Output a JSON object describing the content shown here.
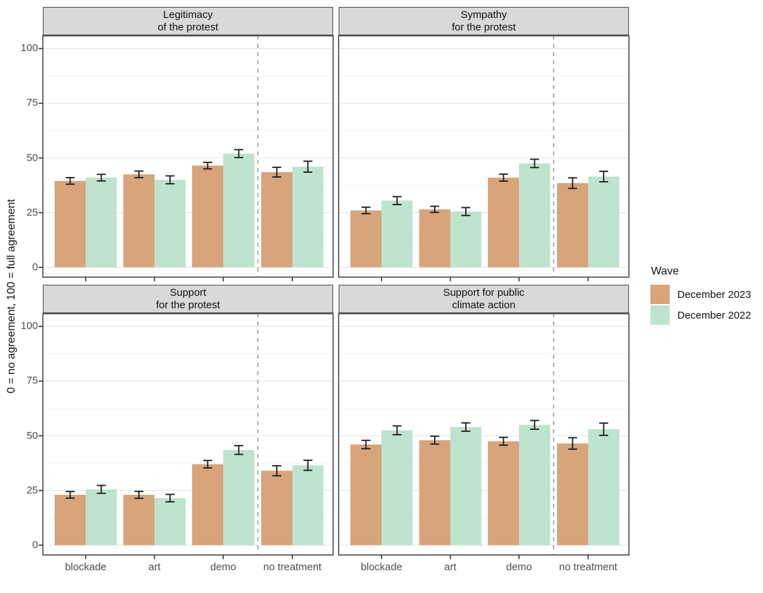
{
  "y_axis_title": "0 = no agreement, 100 = full agreement",
  "legend": {
    "title": "Wave",
    "items": [
      {
        "label": "December 2023",
        "color": "#D8A47C"
      },
      {
        "label": "December 2022",
        "color": "#BEE3CF"
      }
    ]
  },
  "chart_data": {
    "type": "bar",
    "categories": [
      "blockade",
      "art",
      "demo",
      "no treatment"
    ],
    "y_ticks": [
      0,
      25,
      50,
      75,
      100
    ],
    "ylim": [
      0,
      100
    ],
    "ylabel": "0 = no agreement, 100 = full agreement",
    "grid": "horizontal major+minor, light gray on white",
    "legend_position": "right",
    "legend_title": "Wave",
    "annotations": "dashed vertical separator between demo and no treatment in every panel; black error bars on every bar",
    "panels": [
      {
        "title_lines": [
          "Legitimacy",
          "of the protest"
        ],
        "series": [
          {
            "name": "December 2023",
            "color": "#D8A47C",
            "values": [
              39.5,
              42.5,
              46.5,
              43.5
            ],
            "ci_half": [
              1.5,
              1.5,
              1.5,
              2.2
            ]
          },
          {
            "name": "December 2022",
            "color": "#BEE3CF",
            "values": [
              41,
              40,
              52,
              46
            ],
            "ci_half": [
              1.5,
              1.8,
              1.8,
              2.5
            ]
          }
        ]
      },
      {
        "title_lines": [
          "Sympathy",
          "for the protest"
        ],
        "series": [
          {
            "name": "December 2023",
            "color": "#D8A47C",
            "values": [
              26,
              26.5,
              41,
              38.5
            ],
            "ci_half": [
              1.5,
              1.4,
              1.6,
              2.4
            ]
          },
          {
            "name": "December 2022",
            "color": "#BEE3CF",
            "values": [
              30.5,
              25.5,
              47.5,
              41.5
            ],
            "ci_half": [
              1.8,
              1.8,
              1.9,
              2.4
            ]
          }
        ]
      },
      {
        "title_lines": [
          "Support",
          "for the protest"
        ],
        "series": [
          {
            "name": "December 2023",
            "color": "#D8A47C",
            "values": [
              23,
              23,
              37,
              34
            ],
            "ci_half": [
              1.5,
              1.6,
              1.7,
              2.3
            ]
          },
          {
            "name": "December 2022",
            "color": "#BEE3CF",
            "values": [
              25.5,
              21.5,
              43.5,
              36.5
            ],
            "ci_half": [
              1.8,
              1.7,
              2.0,
              2.3
            ]
          }
        ]
      },
      {
        "title_lines": [
          "Support for public",
          "climate action"
        ],
        "series": [
          {
            "name": "December 2023",
            "color": "#D8A47C",
            "values": [
              46,
              48,
              47.5,
              46.5
            ],
            "ci_half": [
              1.9,
              1.8,
              1.8,
              2.6
            ]
          },
          {
            "name": "December 2022",
            "color": "#BEE3CF",
            "values": [
              52.5,
              54,
              55,
              53
            ],
            "ci_half": [
              2.0,
              1.9,
              2.0,
              2.8
            ]
          }
        ]
      }
    ]
  }
}
